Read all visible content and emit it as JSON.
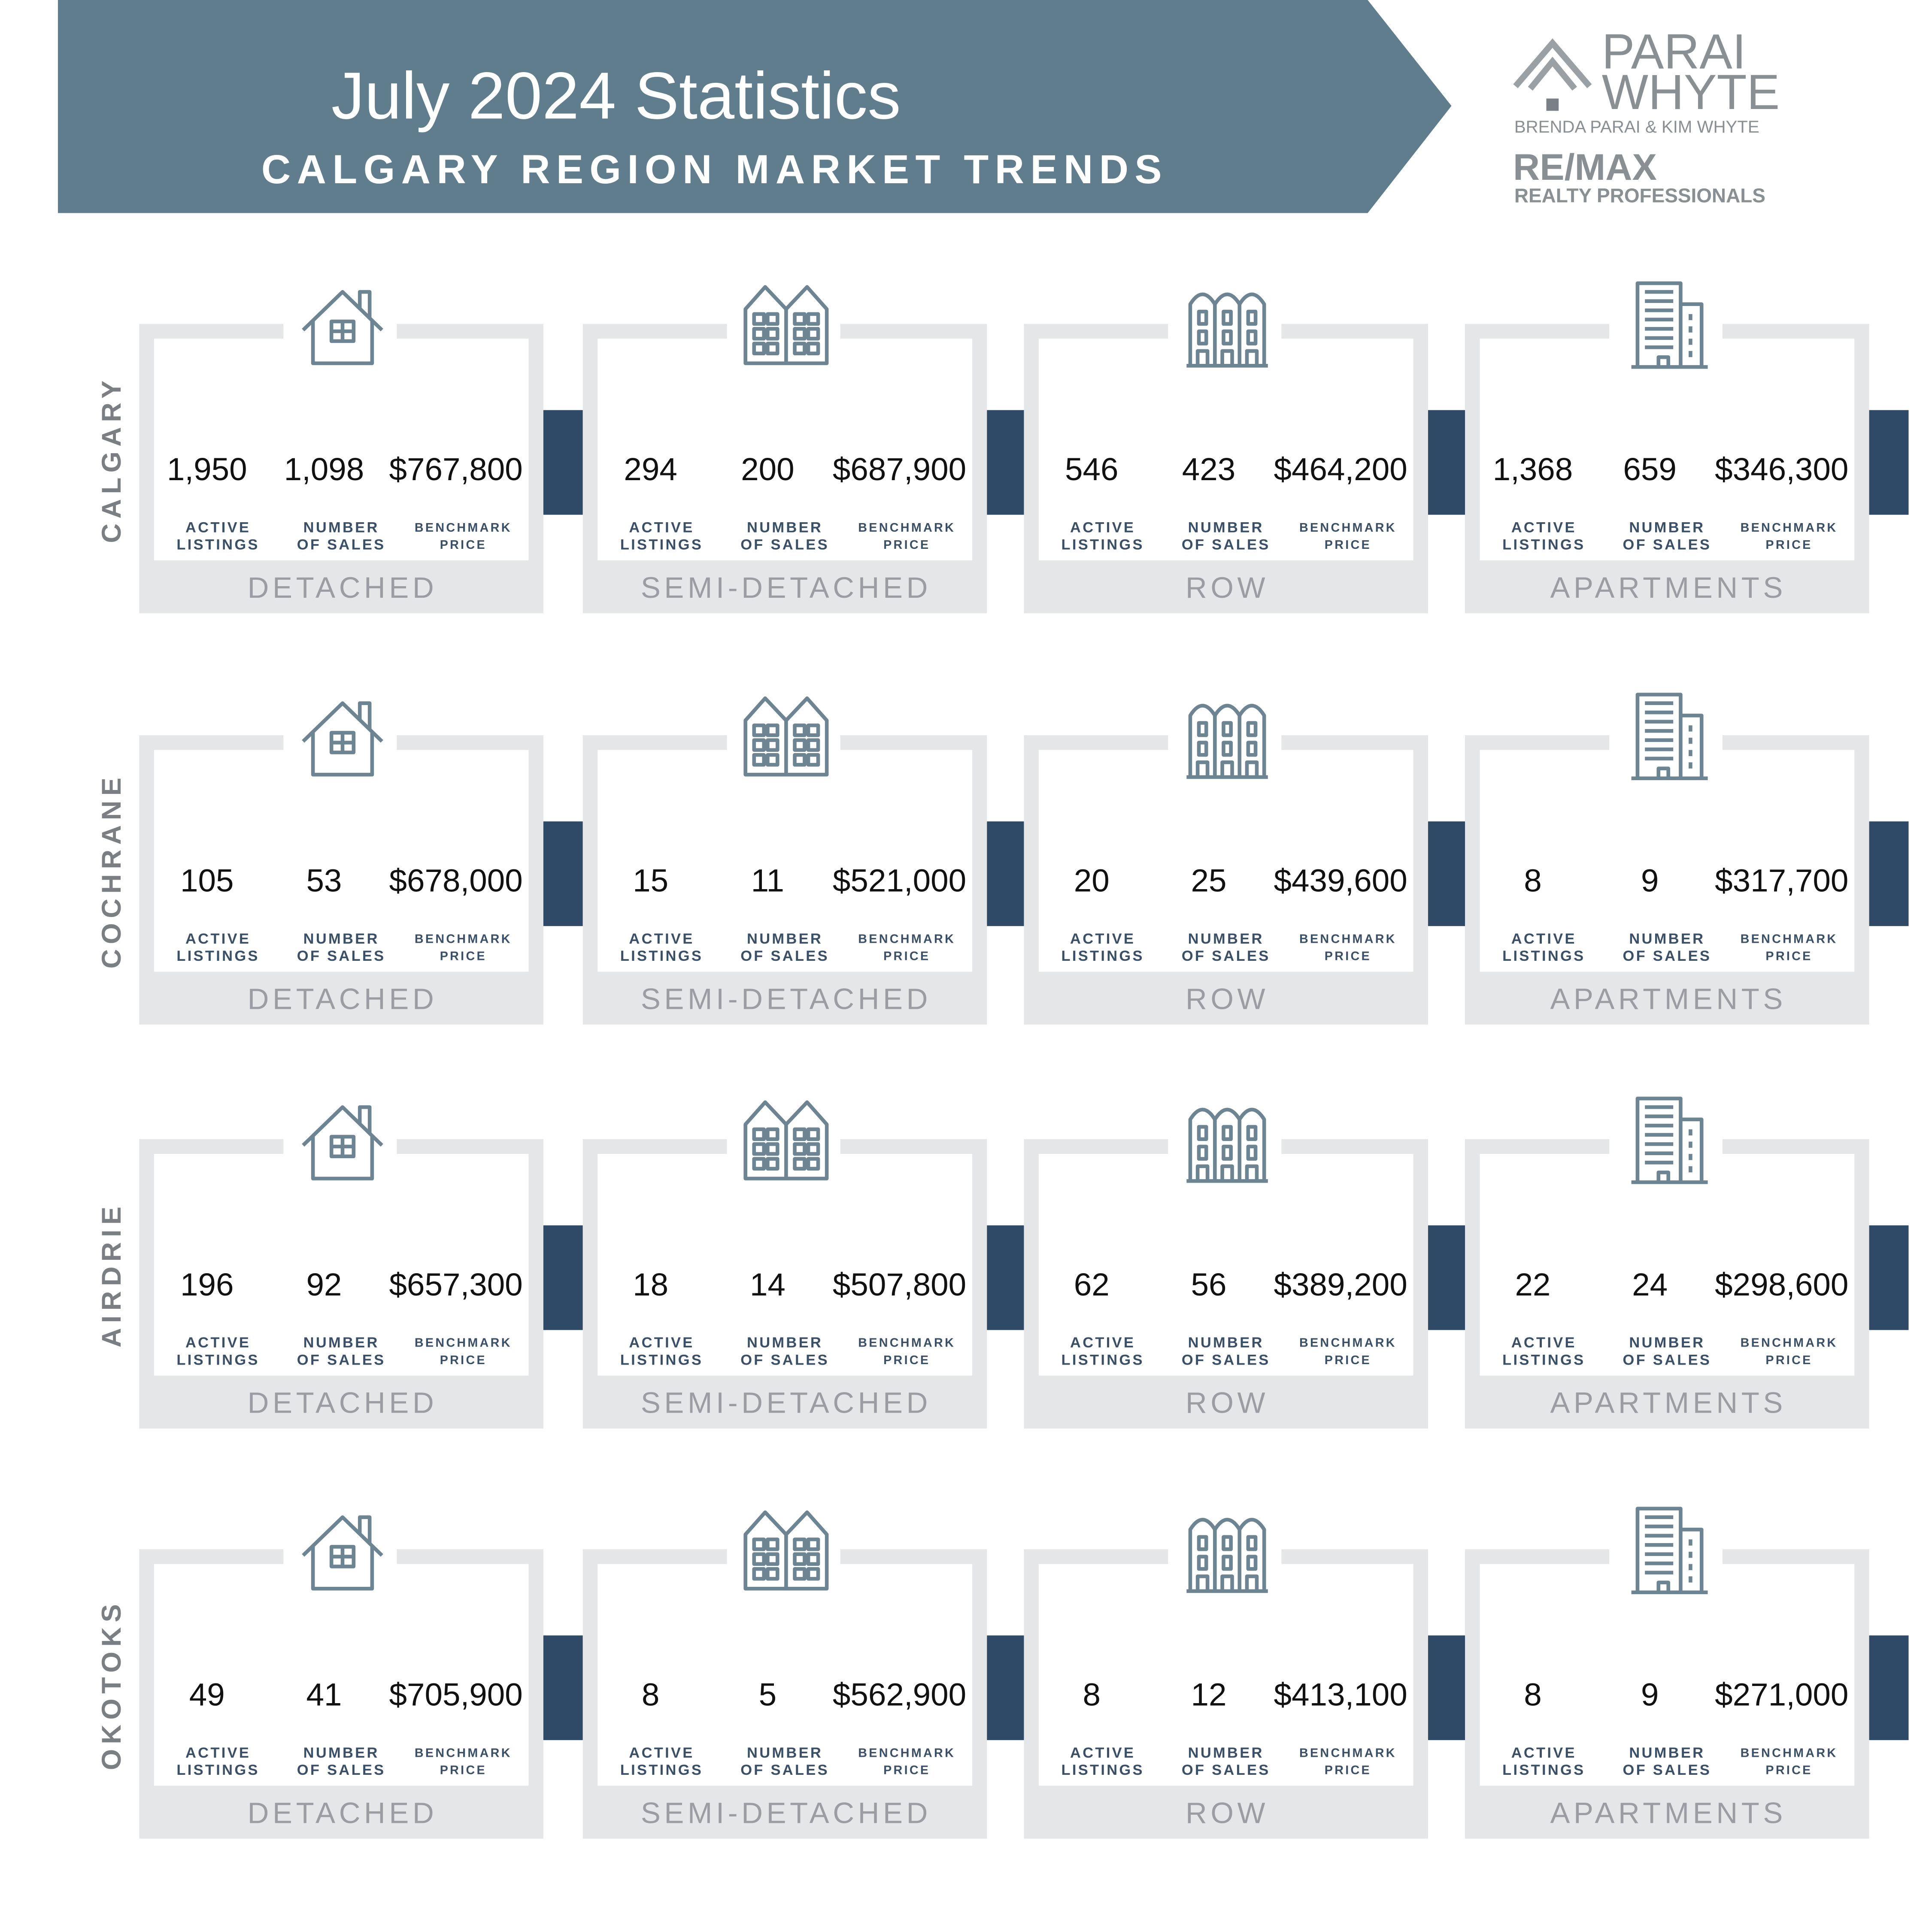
{
  "header": {
    "title": "July 2024 Statistics",
    "subtitle": "CALGARY REGION MARKET TRENDS"
  },
  "logo": {
    "line1": "PARAI",
    "line2": "WHYTE",
    "names": "BRENDA PARAI & KIM WHYTE",
    "brand": "RE/MAX",
    "brand_sub": "REALTY PROFESSIONALS"
  },
  "labels": [
    [
      "ACTIVE",
      "LISTINGS"
    ],
    [
      "NUMBER",
      "OF SALES"
    ],
    [
      "BENCHMARK",
      "PRICE"
    ]
  ],
  "regions": [
    {
      "name": "CALGARY",
      "cards": [
        {
          "type": "DETACHED",
          "values": [
            "1,950",
            "1,098",
            "$767,800"
          ]
        },
        {
          "type": "SEMI-DETACHED",
          "values": [
            "294",
            "200",
            "$687,900"
          ]
        },
        {
          "type": "ROW",
          "values": [
            "546",
            "423",
            "$464,200"
          ]
        },
        {
          "type": "APARTMENTS",
          "values": [
            "1,368",
            "659",
            "$346,300"
          ]
        }
      ]
    },
    {
      "name": "COCHRANE",
      "cards": [
        {
          "type": "DETACHED",
          "values": [
            "105",
            "53",
            "$678,000"
          ]
        },
        {
          "type": "SEMI-DETACHED",
          "values": [
            "15",
            "11",
            "$521,000"
          ]
        },
        {
          "type": "ROW",
          "values": [
            "20",
            "25",
            "$439,600"
          ]
        },
        {
          "type": "APARTMENTS",
          "values": [
            "8",
            "9",
            "$317,700"
          ]
        }
      ]
    },
    {
      "name": "AIRDRIE",
      "cards": [
        {
          "type": "DETACHED",
          "values": [
            "196",
            "92",
            "$657,300"
          ]
        },
        {
          "type": "SEMI-DETACHED",
          "values": [
            "18",
            "14",
            "$507,800"
          ]
        },
        {
          "type": "ROW",
          "values": [
            "62",
            "56",
            "$389,200"
          ]
        },
        {
          "type": "APARTMENTS",
          "values": [
            "22",
            "24",
            "$298,600"
          ]
        }
      ]
    },
    {
      "name": "OKOTOKS",
      "cards": [
        {
          "type": "DETACHED",
          "values": [
            "49",
            "41",
            "$705,900"
          ]
        },
        {
          "type": "SEMI-DETACHED",
          "values": [
            "8",
            "5",
            "$562,900"
          ]
        },
        {
          "type": "ROW",
          "values": [
            "8",
            "12",
            "$413,100"
          ]
        },
        {
          "type": "APARTMENTS",
          "values": [
            "8",
            "9",
            "$271,000"
          ]
        }
      ]
    }
  ]
}
